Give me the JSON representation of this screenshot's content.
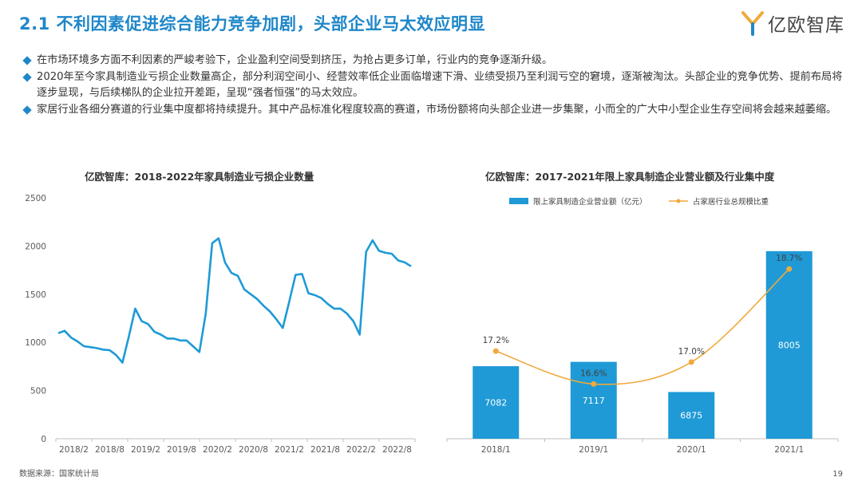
{
  "header": {
    "title": "2.1 不利因素促进综合能力竞争加剧，头部企业马太效应明显",
    "logo_text": "亿欧智库",
    "accent_color": "#1f87c9"
  },
  "bullets": [
    "在市场环境多方面不利因素的严峻考验下，企业盈利空间受到挤压，为抢占更多订单，行业内的竞争逐渐升级。",
    "2020年至今家具制造业亏损企业数量高企，部分利润空间小、经营效率低企业面临增速下滑、业绩受损乃至利润亏空的窘境，逐渐被淘汰。头部企业的竞争优势、提前布局将逐步显现，与后续梯队的企业拉开差距，呈现“强者恒强”的马太效应。",
    "家居行业各细分赛道的行业集中度都将持续提升。其中产品标准化程度较高的赛道，市场份额将向头部企业进一步集聚，小而全的广大中小型企业生存空间将会越来越萎缩。"
  ],
  "chart_data": [
    {
      "type": "line",
      "title": "亿欧智库：2018-2022年家具制造业亏损企业数量",
      "ylim": [
        0,
        2500
      ],
      "yticks": [
        0,
        500,
        1000,
        1500,
        2000,
        2500
      ],
      "xticks": [
        "2018/2",
        "2018/8",
        "2019/2",
        "2019/8",
        "2020/2",
        "2020/8",
        "2021/2",
        "2021/8",
        "2022/2",
        "2022/8"
      ],
      "series": [
        {
          "name": "亏损企业数量",
          "color": "#1f9ad6",
          "values": [
            1095,
            1120,
            1050,
            1010,
            960,
            950,
            940,
            925,
            920,
            870,
            790,
            1060,
            1350,
            1220,
            1190,
            1110,
            1080,
            1040,
            1040,
            1020,
            1020,
            960,
            900,
            1300,
            2030,
            2080,
            1830,
            1720,
            1690,
            1550,
            1500,
            1450,
            1380,
            1320,
            1240,
            1150,
            1420,
            1700,
            1710,
            1510,
            1490,
            1460,
            1400,
            1350,
            1350,
            1300,
            1220,
            1080,
            1940,
            2060,
            1950,
            1930,
            1920,
            1850,
            1830,
            1790
          ]
        }
      ]
    },
    {
      "type": "bar",
      "title": "亿欧智库：2017-2021年限上家具制造企业营业额及行业集中度",
      "categories": [
        "2018/1",
        "2019/1",
        "2020/1",
        "2021/1"
      ],
      "series": [
        {
          "name": "限上家具制造企业营业额（亿元）",
          "color": "#1f9ad6",
          "values": [
            7082,
            7117,
            6875,
            8005
          ]
        },
        {
          "name": "占家居行业总规模比重",
          "color": "#f0a93b",
          "values": [
            17.2,
            16.6,
            17.0,
            18.7
          ],
          "labels": [
            "17.2%",
            "16.6%",
            "17.0%",
            "18.7%"
          ]
        }
      ],
      "ylim_bar": [
        6500,
        8100
      ],
      "ylim_line": [
        15.6,
        19.3
      ]
    }
  ],
  "footer": {
    "source": "数据来源：国家统计局",
    "page_number": "19"
  }
}
